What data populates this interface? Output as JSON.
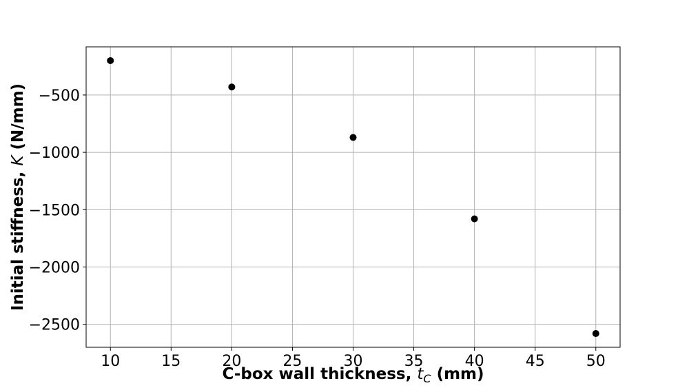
{
  "chart_data": {
    "type": "scatter",
    "title": "",
    "xlabel": {
      "prefix": "C-box wall thickness, ",
      "var": "t",
      "sub": "C",
      "suffix": " (mm)"
    },
    "ylabel": {
      "prefix": "Initial stiffness, ",
      "var": "K",
      "suffix": " (N/mm)"
    },
    "xlim": [
      8,
      52
    ],
    "ylim": [
      -2700,
      -80
    ],
    "xticks": [
      10,
      15,
      20,
      25,
      30,
      35,
      40,
      45,
      50
    ],
    "yticks": [
      -500,
      -1000,
      -1500,
      -2000,
      -2500
    ],
    "grid": true,
    "marker_color": "#000000",
    "series": [
      {
        "x": [
          10,
          20,
          30,
          40,
          50
        ],
        "y": [
          -200,
          -430,
          -870,
          -1580,
          -2580
        ]
      }
    ]
  }
}
